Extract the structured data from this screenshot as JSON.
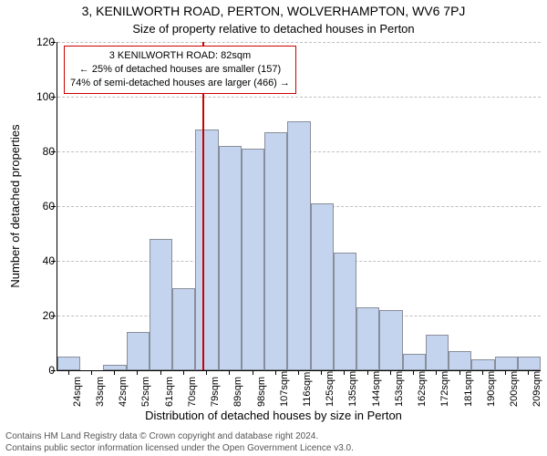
{
  "title": "3, KENILWORTH ROAD, PERTON, WOLVERHAMPTON, WV6 7PJ",
  "subtitle": "Size of property relative to detached houses in Perton",
  "ylabel": "Number of detached properties",
  "xlabel": "Distribution of detached houses by size in Perton",
  "chart": {
    "type": "histogram",
    "ylim": [
      0,
      120
    ],
    "yticks": [
      0,
      20,
      40,
      60,
      80,
      100,
      120
    ],
    "marker_x_value": 82,
    "bar_fill": "#c4d4ee",
    "bar_stroke": "#888e99",
    "marker_color": "#cc0000",
    "grid_color": "#bfbfbf",
    "background_color": "#ffffff",
    "categories": [
      "24sqm",
      "33sqm",
      "42sqm",
      "52sqm",
      "61sqm",
      "70sqm",
      "79sqm",
      "89sqm",
      "98sqm",
      "107sqm",
      "116sqm",
      "125sqm",
      "135sqm",
      "144sqm",
      "153sqm",
      "162sqm",
      "172sqm",
      "181sqm",
      "190sqm",
      "200sqm",
      "209sqm"
    ],
    "values": [
      5,
      0,
      2,
      14,
      48,
      30,
      88,
      82,
      81,
      87,
      91,
      61,
      43,
      23,
      22,
      6,
      13,
      7,
      4,
      5,
      5
    ]
  },
  "annotation": {
    "line1": "3 KENILWORTH ROAD: 82sqm",
    "line2": "← 25% of detached houses are smaller (157)",
    "line3": "74% of semi-detached houses are larger (466) →"
  },
  "footer": {
    "line1": "Contains HM Land Registry data © Crown copyright and database right 2024.",
    "line2": "Contains public sector information licensed under the Open Government Licence v3.0."
  },
  "fonts": {
    "title_fontsize": 14,
    "subtitle_fontsize": 13,
    "axis_label_fontsize": 13,
    "tick_fontsize": 12,
    "xtick_fontsize": 11,
    "annotation_fontsize": 11,
    "footer_fontsize": 10
  }
}
